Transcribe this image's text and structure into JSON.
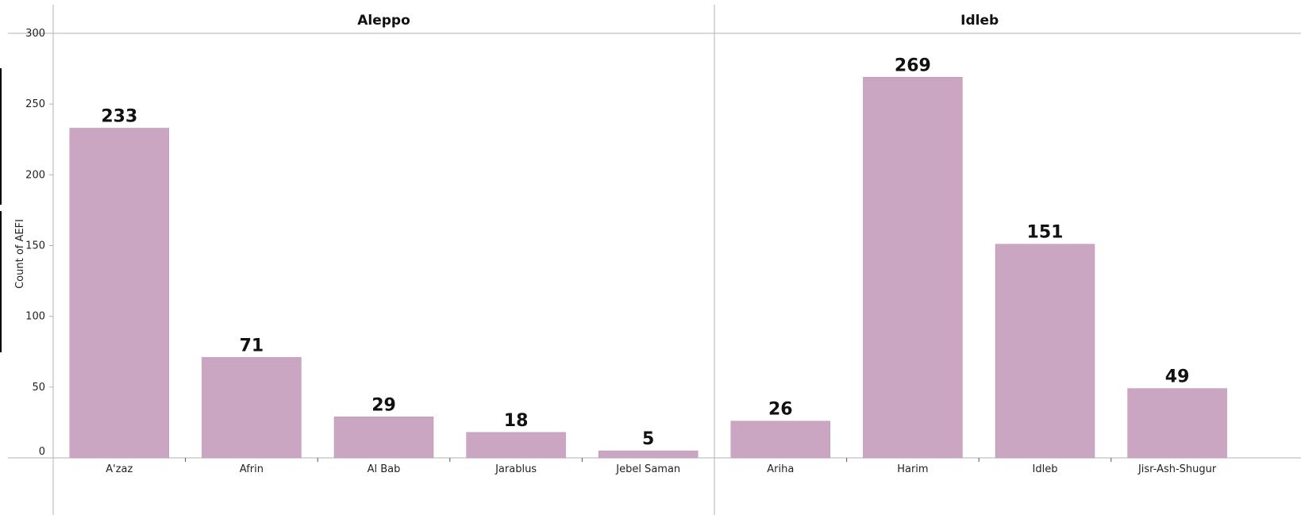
{
  "chart_data": {
    "type": "bar",
    "ylabel": "Count of AEFI",
    "ylim": [
      0,
      300
    ],
    "yticks": [
      0,
      50,
      100,
      150,
      200,
      250,
      300
    ],
    "bar_color": "#cba6c3",
    "panels": [
      {
        "title": "Aleppo",
        "categories": [
          "A'zaz",
          "Afrin",
          "Al Bab",
          "Jarablus",
          "Jebel Saman"
        ],
        "values": [
          233,
          71,
          29,
          18,
          5
        ]
      },
      {
        "title": "Idleb",
        "categories": [
          "Ariha",
          "Harim",
          "Idleb",
          "Jisr-Ash-Shugur"
        ],
        "values": [
          26,
          269,
          151,
          49
        ]
      }
    ]
  }
}
